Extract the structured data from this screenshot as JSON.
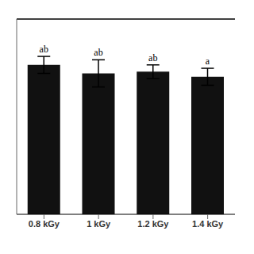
{
  "chart_data": {
    "type": "bar",
    "categories": [
      "0.8 kGy",
      "1 kGy",
      "1.2 kGy",
      "1.4 kGy"
    ],
    "values": [
      88,
      83,
      84,
      81
    ],
    "errors": [
      5,
      8,
      4,
      5
    ],
    "annotations": [
      "ab",
      "ab",
      "ab",
      "a"
    ],
    "color": "#111111",
    "ylim": [
      0,
      115
    ],
    "yticks": [],
    "tick_labels": "x",
    "grid": false
  }
}
